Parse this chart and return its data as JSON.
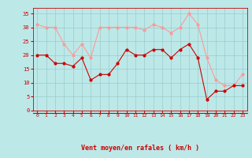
{
  "x": [
    0,
    1,
    2,
    3,
    4,
    5,
    6,
    7,
    8,
    9,
    10,
    11,
    12,
    13,
    14,
    15,
    16,
    17,
    18,
    19,
    20,
    21,
    22,
    23
  ],
  "vent_moyen": [
    20,
    20,
    17,
    17,
    16,
    19,
    11,
    13,
    13,
    17,
    22,
    20,
    20,
    22,
    22,
    19,
    22,
    24,
    19,
    4,
    7,
    7,
    9,
    9
  ],
  "rafales": [
    31,
    30,
    30,
    24,
    20,
    24,
    19,
    30,
    30,
    30,
    30,
    30,
    29,
    31,
    30,
    28,
    30,
    35,
    31,
    19,
    11,
    9,
    9,
    13
  ],
  "bg_color": "#bde8e8",
  "grid_color": "#99cccc",
  "line_moyen_color": "#cc0000",
  "line_rafales_color": "#ff9999",
  "xlabel": "Vent moyen/en rafales ( km/h )",
  "ylim": [
    0,
    37
  ],
  "xlim_min": -0.5,
  "xlim_max": 23.5,
  "yticks": [
    0,
    5,
    10,
    15,
    20,
    25,
    30,
    35
  ],
  "xticks": [
    0,
    1,
    2,
    3,
    4,
    5,
    6,
    7,
    8,
    9,
    10,
    11,
    12,
    13,
    14,
    15,
    16,
    17,
    18,
    19,
    20,
    21,
    22,
    23
  ],
  "tick_color": "#cc0000",
  "axis_color": "#cc0000",
  "arrow_symbols": [
    "↗",
    "↗",
    "↗",
    "↗",
    "↗",
    "↗",
    "→",
    "↗",
    "→",
    "→",
    "→",
    "→",
    "→",
    "→",
    "→",
    "→",
    "→",
    "→",
    "→",
    "↗",
    "↑",
    "↑",
    "↑",
    "↑"
  ]
}
